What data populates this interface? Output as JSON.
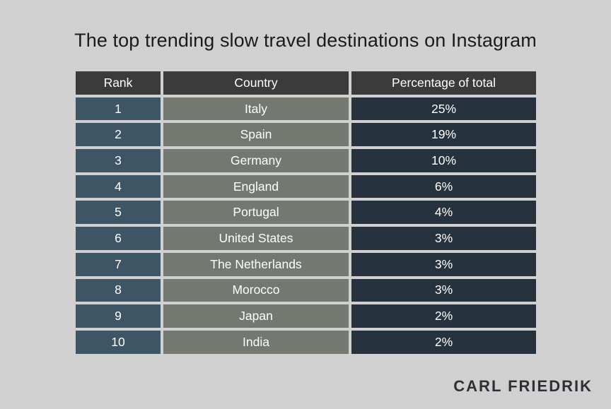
{
  "title": "The top trending slow travel destinations on Instagram",
  "brand": "CARL FRIEDRIK",
  "colors": {
    "background": "#d0d0d0",
    "header": "#3b3b3b",
    "rank_column": "#3e5565",
    "country_column": "#737870",
    "percentage_column": "#26323d"
  },
  "chart_data": {
    "type": "table",
    "title": "The top trending slow travel destinations on Instagram",
    "columns": [
      "Rank",
      "Country",
      "Percentage of total"
    ],
    "rows": [
      [
        "1",
        "Italy",
        "25%"
      ],
      [
        "2",
        "Spain",
        "19%"
      ],
      [
        "3",
        "Germany",
        "10%"
      ],
      [
        "4",
        "England",
        "6%"
      ],
      [
        "5",
        "Portugal",
        "4%"
      ],
      [
        "6",
        "United States",
        "3%"
      ],
      [
        "7",
        "The Netherlands",
        "3%"
      ],
      [
        "8",
        "Morocco",
        "3%"
      ],
      [
        "9",
        "Japan",
        "2%"
      ],
      [
        "10",
        "India",
        "2%"
      ]
    ]
  }
}
